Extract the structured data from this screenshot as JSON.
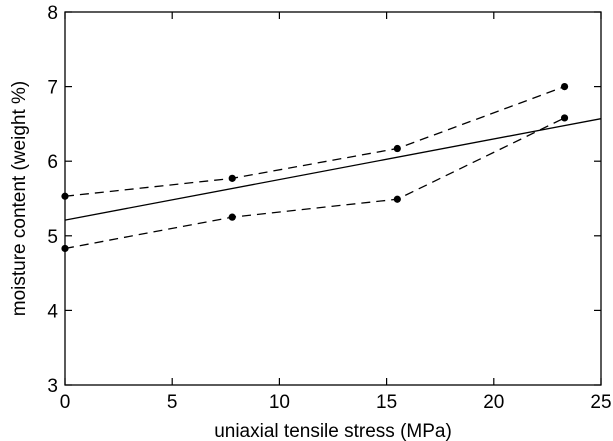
{
  "chart_data": {
    "type": "line",
    "title": "",
    "xlabel": "uniaxial tensile stress (MPa)",
    "ylabel": "moisture content (weight %)",
    "xlim": [
      0,
      25
    ],
    "ylim": [
      3,
      8
    ],
    "xticks": [
      0,
      5,
      10,
      15,
      20,
      25
    ],
    "yticks": [
      3,
      4,
      5,
      6,
      7,
      8
    ],
    "grid": false,
    "legend": "none",
    "series": [
      {
        "style": "dashed-with-markers",
        "color": "#000000",
        "points": [
          [
            0,
            5.53
          ],
          [
            7.8,
            5.77
          ],
          [
            15.5,
            6.17
          ],
          [
            23.3,
            7.0
          ]
        ]
      },
      {
        "style": "dashed-with-markers",
        "color": "#000000",
        "points": [
          [
            0,
            4.83
          ],
          [
            7.8,
            5.25
          ],
          [
            15.5,
            5.49
          ],
          [
            23.3,
            6.58
          ]
        ]
      },
      {
        "style": "solid",
        "color": "#000000",
        "points": [
          [
            0,
            5.21
          ],
          [
            25,
            6.57
          ]
        ]
      }
    ]
  }
}
